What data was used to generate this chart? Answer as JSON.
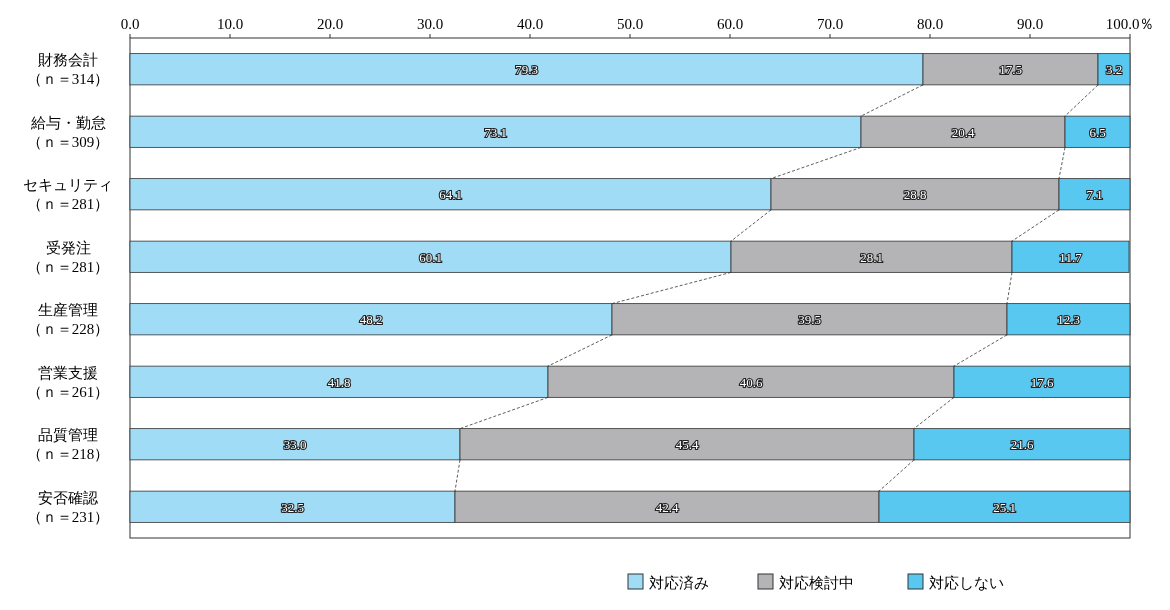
{
  "chart_data": {
    "type": "bar",
    "orientation": "horizontal",
    "stacked": true,
    "categories": [
      "財務会計（ｎ＝314）",
      "給与・勤怠（ｎ＝309）",
      "セキュリティ（ｎ＝281）",
      "受発注（ｎ＝281）",
      "生産管理（ｎ＝228）",
      "営業支援（ｎ＝261）",
      "品質管理（ｎ＝218）",
      "安否確認（ｎ＝231）"
    ],
    "series": [
      {
        "name": "対応済み",
        "color": "#a0dcf6",
        "values": [
          79.3,
          73.1,
          64.1,
          60.1,
          48.2,
          41.8,
          33.0,
          32.5
        ],
        "value_labels": [
          "79.3",
          "73.1",
          "64.1",
          "60.1",
          "48.2",
          "41.8",
          "33.0",
          "32.5"
        ]
      },
      {
        "name": "対応検討中",
        "color": "#b4b4b6",
        "values": [
          17.5,
          20.4,
          28.8,
          28.1,
          39.5,
          40.6,
          45.4,
          42.4
        ],
        "value_labels": [
          "17.5",
          "20.4",
          "28.8",
          "28.1",
          "39.5",
          "40.6",
          "45.4",
          "42.4"
        ]
      },
      {
        "name": "対応しない",
        "color": "#58c8f0",
        "values": [
          3.2,
          6.5,
          7.1,
          11.7,
          12.3,
          17.6,
          21.6,
          25.1
        ],
        "value_labels": [
          "3.2",
          "6.5",
          "7.1",
          "11.7",
          "12.3",
          "17.6",
          "21.6",
          "25.1"
        ]
      }
    ],
    "xlim": [
      0,
      100
    ],
    "xticks": [
      {
        "value": 0,
        "label": "0.0"
      },
      {
        "value": 10,
        "label": "10.0"
      },
      {
        "value": 20,
        "label": "20.0"
      },
      {
        "value": 30,
        "label": "30.0"
      },
      {
        "value": 40,
        "label": "40.0"
      },
      {
        "value": 50,
        "label": "50.0"
      },
      {
        "value": 60,
        "label": "60.0"
      },
      {
        "value": 70,
        "label": "70.0"
      },
      {
        "value": 80,
        "label": "80.0"
      },
      {
        "value": 90,
        "label": "90.0"
      },
      {
        "value": 100,
        "label": "100.0％"
      }
    ],
    "legend": "bottom right"
  }
}
